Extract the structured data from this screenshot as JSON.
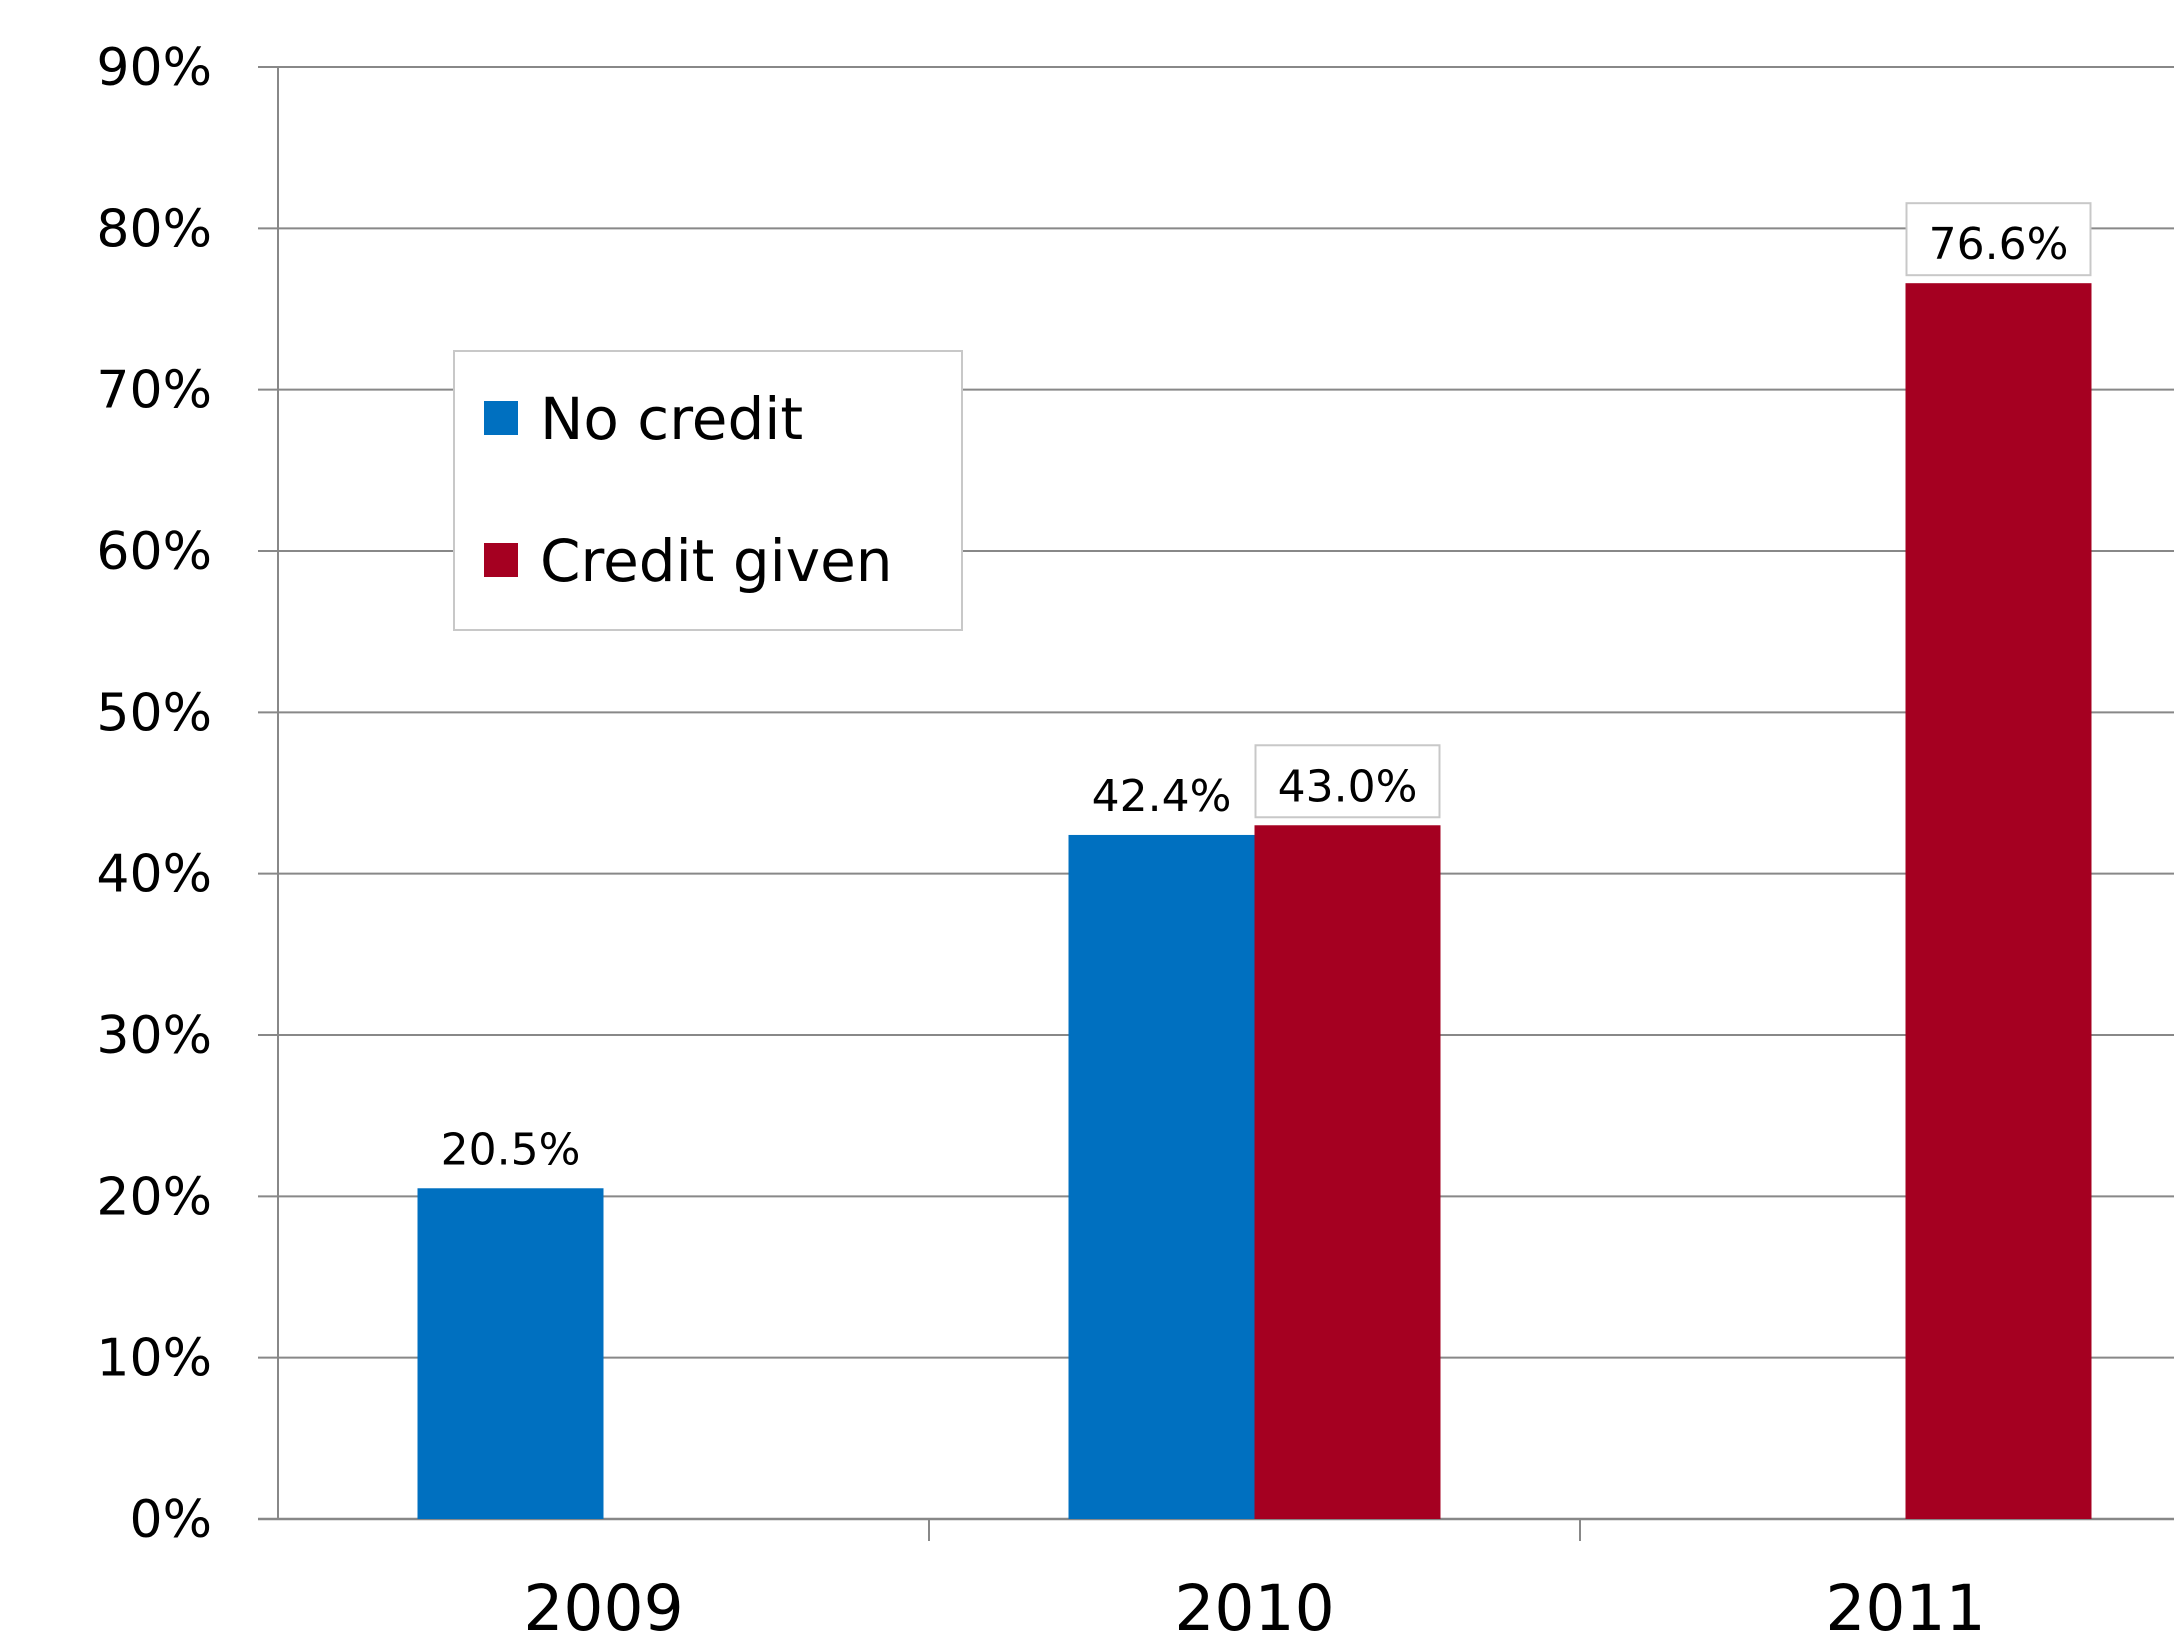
{
  "chart_data": {
    "type": "bar",
    "title": "",
    "xlabel": "",
    "ylabel": "",
    "categories": [
      "2009",
      "2010",
      "2011"
    ],
    "ylim": [
      0,
      90
    ],
    "y_ticks": [
      0,
      10,
      20,
      30,
      40,
      50,
      60,
      70,
      80,
      90
    ],
    "y_tick_labels": [
      "0%",
      "10%",
      "20%",
      "30%",
      "40%",
      "50%",
      "60%",
      "70%",
      "80%",
      "90%"
    ],
    "grid": true,
    "legend_position": "upper-left",
    "series": [
      {
        "name": "No credit",
        "color": "#0070C0",
        "values": [
          20.5,
          42.4,
          null
        ],
        "labels": [
          "20.5%",
          "42.4%",
          ""
        ],
        "label_boxed": false
      },
      {
        "name": "Credit given",
        "color": "#A50021",
        "values": [
          null,
          43.0,
          76.6
        ],
        "labels": [
          "",
          "43.0%",
          "76.6%"
        ],
        "label_boxed": true
      }
    ]
  }
}
